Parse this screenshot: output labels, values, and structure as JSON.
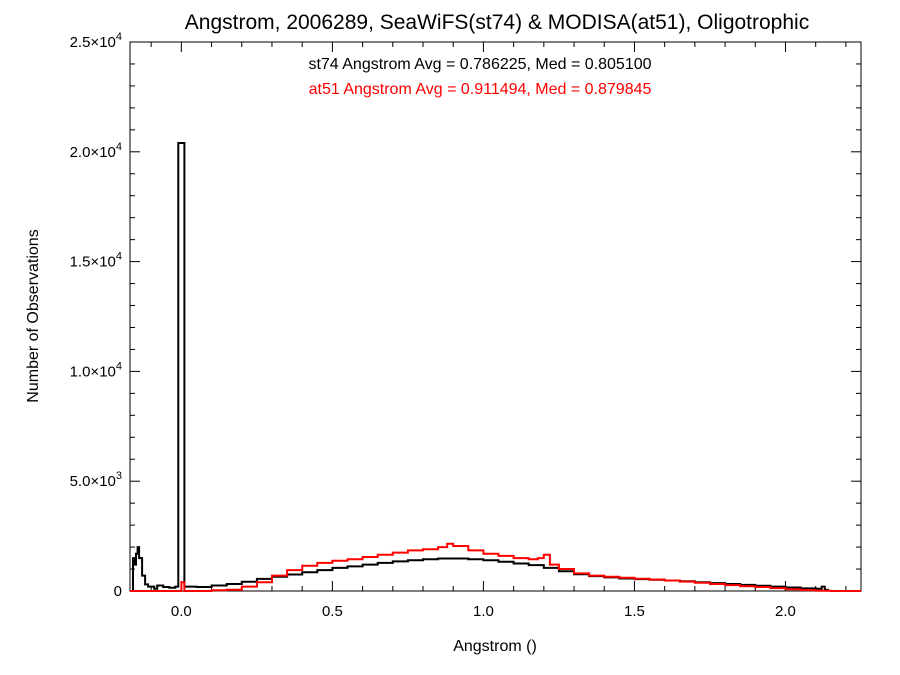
{
  "chart_data": {
    "type": "line",
    "title": "Angstrom, 2006289, SeaWiFS(st74) & MODISA(at51), Oligotrophic",
    "xlabel": "Angstrom ()",
    "ylabel": "Number of Observations",
    "xlim": [
      -0.17,
      2.25
    ],
    "ylim": [
      0,
      25000
    ],
    "x_ticks": [
      {
        "value": 0.0,
        "label": "0.0"
      },
      {
        "value": 0.5,
        "label": "0.5"
      },
      {
        "value": 1.0,
        "label": "1.0"
      },
      {
        "value": 1.5,
        "label": "1.5"
      },
      {
        "value": 2.0,
        "label": "2.0"
      }
    ],
    "y_ticks": [
      {
        "value": 0,
        "mant": "0",
        "exp": ""
      },
      {
        "value": 5000,
        "mant": "5.0×10",
        "exp": "3"
      },
      {
        "value": 10000,
        "mant": "1.0×10",
        "exp": "4"
      },
      {
        "value": 15000,
        "mant": "1.5×10",
        "exp": "4"
      },
      {
        "value": 20000,
        "mant": "2.0×10",
        "exp": "4"
      },
      {
        "value": 25000,
        "mant": "2.5×10",
        "exp": "4"
      }
    ],
    "grid": false,
    "annotations": [
      {
        "text": "st74 Angstrom Avg = 0.786225, Med = 0.805100",
        "color": "#000000"
      },
      {
        "text": "at51 Angstrom Avg = 0.911494, Med = 0.879845",
        "color": "#ff0000"
      }
    ],
    "series": [
      {
        "color": "#000000",
        "step": true,
        "points": [
          [
            -0.17,
            0
          ],
          [
            -0.16,
            1500
          ],
          [
            -0.155,
            1200
          ],
          [
            -0.15,
            1700
          ],
          [
            -0.145,
            2000
          ],
          [
            -0.14,
            1500
          ],
          [
            -0.13,
            700
          ],
          [
            -0.12,
            300
          ],
          [
            -0.11,
            200
          ],
          [
            -0.09,
            100
          ],
          [
            -0.08,
            250
          ],
          [
            -0.06,
            180
          ],
          [
            -0.04,
            150
          ],
          [
            -0.02,
            200
          ],
          [
            -0.01,
            20400
          ],
          [
            0.0,
            20400
          ],
          [
            0.01,
            200
          ],
          [
            0.05,
            180
          ],
          [
            0.1,
            250
          ],
          [
            0.15,
            320
          ],
          [
            0.2,
            420
          ],
          [
            0.25,
            550
          ],
          [
            0.3,
            650
          ],
          [
            0.35,
            750
          ],
          [
            0.4,
            850
          ],
          [
            0.45,
            950
          ],
          [
            0.5,
            1050
          ],
          [
            0.55,
            1120
          ],
          [
            0.6,
            1200
          ],
          [
            0.65,
            1280
          ],
          [
            0.7,
            1350
          ],
          [
            0.75,
            1400
          ],
          [
            0.8,
            1450
          ],
          [
            0.85,
            1480
          ],
          [
            0.9,
            1480
          ],
          [
            0.95,
            1450
          ],
          [
            1.0,
            1400
          ],
          [
            1.05,
            1330
          ],
          [
            1.1,
            1250
          ],
          [
            1.15,
            1180
          ],
          [
            1.2,
            1050
          ],
          [
            1.25,
            900
          ],
          [
            1.3,
            760
          ],
          [
            1.35,
            680
          ],
          [
            1.4,
            620
          ],
          [
            1.45,
            570
          ],
          [
            1.5,
            540
          ],
          [
            1.55,
            510
          ],
          [
            1.6,
            480
          ],
          [
            1.65,
            440
          ],
          [
            1.7,
            400
          ],
          [
            1.75,
            360
          ],
          [
            1.8,
            320
          ],
          [
            1.85,
            280
          ],
          [
            1.9,
            240
          ],
          [
            1.95,
            200
          ],
          [
            2.0,
            160
          ],
          [
            2.05,
            120
          ],
          [
            2.1,
            100
          ],
          [
            2.12,
            200
          ],
          [
            2.13,
            50
          ],
          [
            2.14,
            0
          ]
        ]
      },
      {
        "color": "#ff0000",
        "step": true,
        "points": [
          [
            -0.17,
            0
          ],
          [
            -0.01,
            0
          ],
          [
            0.0,
            400
          ],
          [
            0.01,
            0
          ],
          [
            0.05,
            0
          ],
          [
            0.1,
            30
          ],
          [
            0.15,
            60
          ],
          [
            0.2,
            200
          ],
          [
            0.25,
            400
          ],
          [
            0.3,
            700
          ],
          [
            0.35,
            950
          ],
          [
            0.4,
            1150
          ],
          [
            0.45,
            1280
          ],
          [
            0.5,
            1380
          ],
          [
            0.55,
            1450
          ],
          [
            0.6,
            1550
          ],
          [
            0.65,
            1650
          ],
          [
            0.7,
            1750
          ],
          [
            0.75,
            1850
          ],
          [
            0.8,
            1900
          ],
          [
            0.85,
            2000
          ],
          [
            0.88,
            2150
          ],
          [
            0.9,
            2050
          ],
          [
            0.95,
            1850
          ],
          [
            1.0,
            1700
          ],
          [
            1.05,
            1600
          ],
          [
            1.1,
            1500
          ],
          [
            1.15,
            1450
          ],
          [
            1.18,
            1500
          ],
          [
            1.2,
            1650
          ],
          [
            1.22,
            1200
          ],
          [
            1.25,
            1000
          ],
          [
            1.3,
            800
          ],
          [
            1.35,
            700
          ],
          [
            1.4,
            650
          ],
          [
            1.45,
            600
          ],
          [
            1.5,
            560
          ],
          [
            1.55,
            520
          ],
          [
            1.6,
            480
          ],
          [
            1.65,
            430
          ],
          [
            1.7,
            380
          ],
          [
            1.75,
            320
          ],
          [
            1.8,
            270
          ],
          [
            1.85,
            220
          ],
          [
            1.9,
            180
          ],
          [
            1.95,
            130
          ],
          [
            2.0,
            80
          ],
          [
            2.05,
            40
          ],
          [
            2.1,
            15
          ],
          [
            2.15,
            0
          ],
          [
            2.25,
            0
          ]
        ]
      }
    ]
  }
}
